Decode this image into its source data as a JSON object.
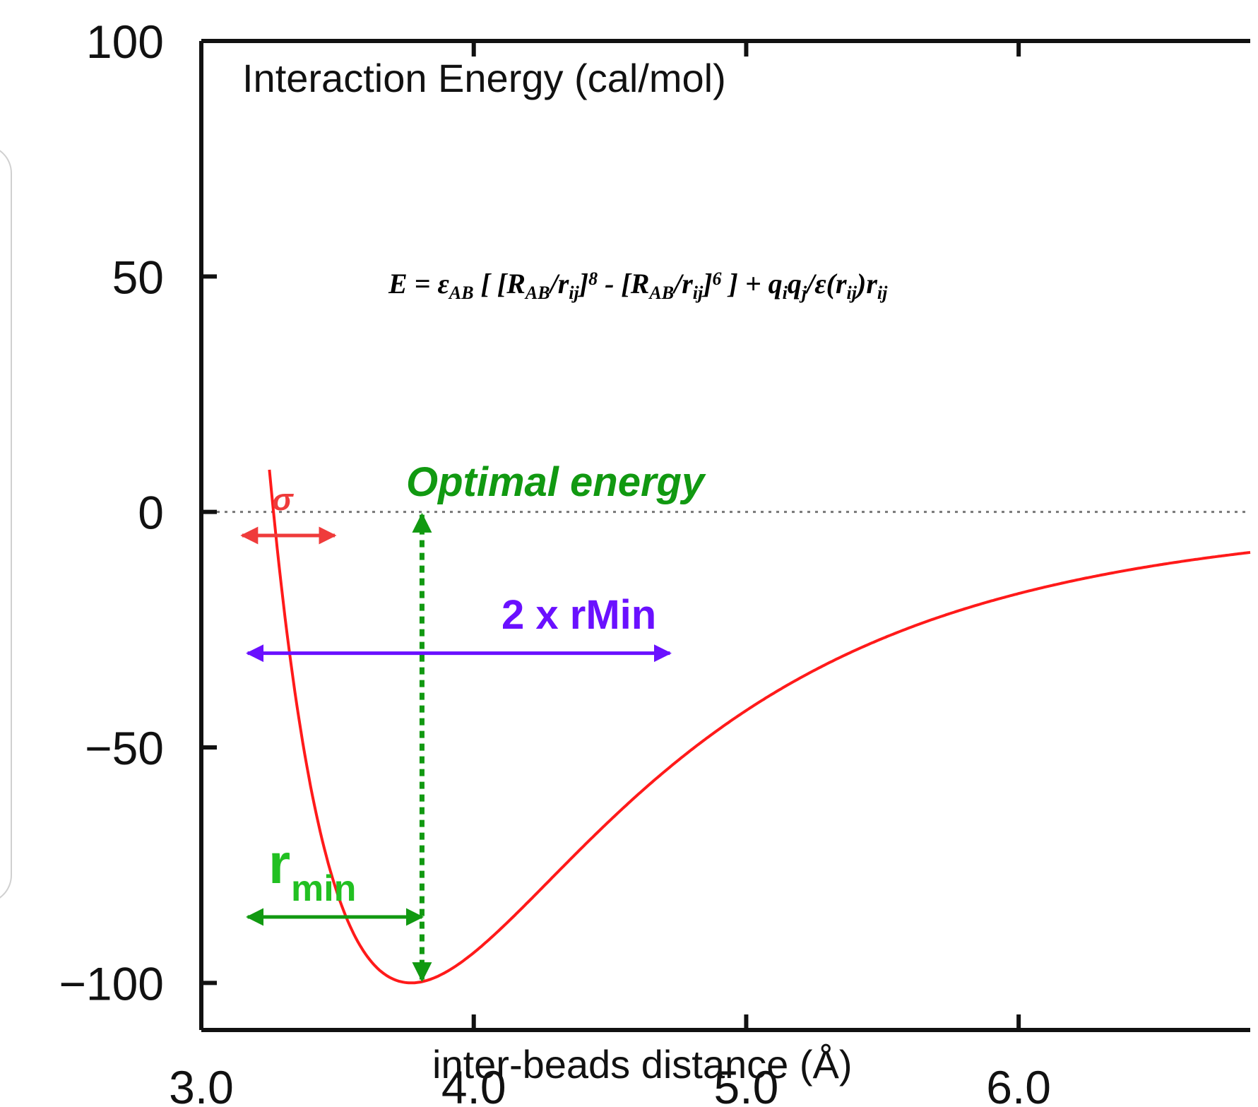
{
  "colors": {
    "curve": "#ff1a1a",
    "axis": "#111111",
    "zero_line": "#777777",
    "sigma": "#ef3b3b",
    "optimal": "#119911",
    "two_rmin": "#6a10ff",
    "rmin": "#119911",
    "rmin_label": "#22c022"
  },
  "chart_data": {
    "type": "line",
    "title": "Interaction Energy (cal/mol)",
    "xlabel": "inter-beads distance (Å)",
    "ylabel": "",
    "xlim": [
      3.0,
      6.85
    ],
    "ylim": [
      -110,
      100
    ],
    "x_ticks": [
      3.0,
      4.0,
      5.0,
      6.0
    ],
    "x_tick_labels": [
      "3.0",
      "4.0",
      "5.0",
      "6.0"
    ],
    "y_ticks": [
      100,
      50,
      0,
      -50,
      -100
    ],
    "y_tick_labels": [
      "100",
      "50",
      "0",
      "−50",
      "−100"
    ],
    "zero_line": {
      "y": 0,
      "style": "dotted"
    },
    "series": [
      {
        "potential": "8-6",
        "epsilon": 100,
        "r_min": 3.77,
        "x_range": [
          3.25,
          6.85
        ]
      }
    ],
    "annotations": {
      "formula": {
        "parts": [
          {
            "t": "E = ε",
            "sub": false
          },
          {
            "t": "AB",
            "sub": true
          },
          {
            "t": " [ [R",
            "sub": false
          },
          {
            "t": "AB",
            "sub": true
          },
          {
            "t": "/r",
            "sub": false
          },
          {
            "t": "ij",
            "sub": true
          },
          {
            "t": "]",
            "sub": false
          },
          {
            "t": "8",
            "sup": true
          },
          {
            "t": " - [R",
            "sub": false
          },
          {
            "t": "AB",
            "sub": true
          },
          {
            "t": "/r",
            "sub": false
          },
          {
            "t": "ij",
            "sub": true
          },
          {
            "t": "]",
            "sub": false
          },
          {
            "t": "6",
            "sup": true
          },
          {
            "t": " ] + q",
            "sub": false
          },
          {
            "t": "i",
            "sub": true
          },
          {
            "t": "q",
            "sub": false
          },
          {
            "t": "j",
            "sub": true
          },
          {
            "t": "/ε(r",
            "sub": false
          },
          {
            "t": "ij",
            "sub": true
          },
          {
            "t": ")r",
            "sub": false
          },
          {
            "t": "ij",
            "sub": true
          }
        ]
      },
      "sigma": {
        "label": "σ",
        "x_from": 3.15,
        "x_to": 3.49,
        "y": -5
      },
      "optimal_energy": {
        "label": "Optimal energy",
        "x": 3.81,
        "y_from": 0,
        "y_to": -100
      },
      "two_rmin": {
        "label": "2 x rMin",
        "x_from": 3.17,
        "x_to": 4.72,
        "y": -30
      },
      "r_min": {
        "label_main": "r",
        "label_sub": "min",
        "x_from": 3.17,
        "x_to": 3.81,
        "y": -86
      }
    }
  }
}
